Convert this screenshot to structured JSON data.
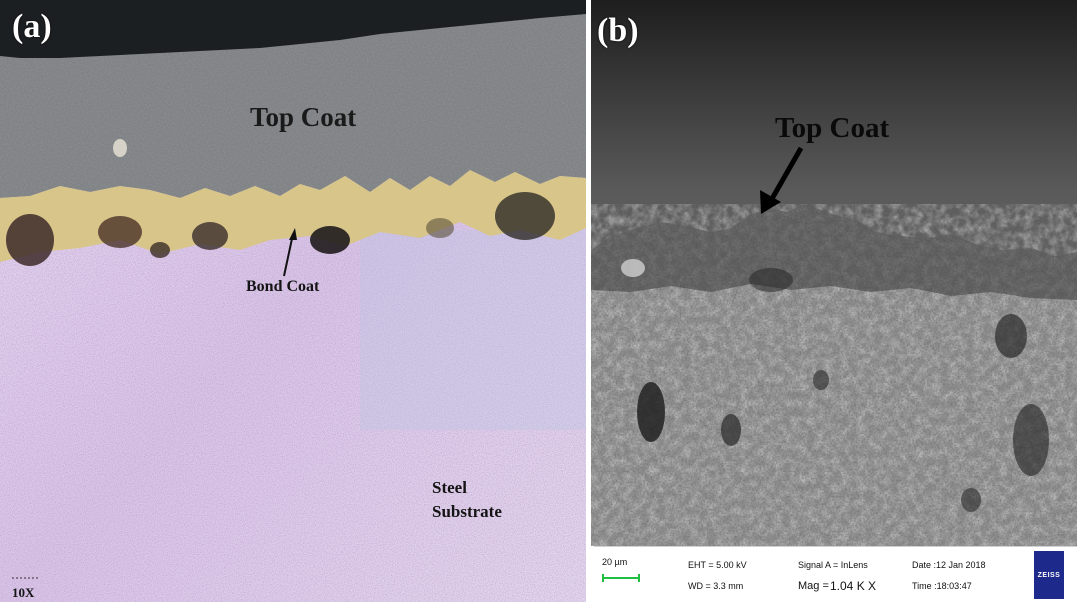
{
  "panel_a": {
    "label": "(a)",
    "top_coat": "Top Coat",
    "bond_coat": "Bond Coat",
    "steel_line1": "Steel",
    "steel_line2": "Substrate",
    "magnification": "10X"
  },
  "panel_b": {
    "label": "(b)",
    "top_coat": "Top Coat",
    "info_bar": {
      "scale": "20 µm",
      "eht": "EHT = 5.00 kV",
      "wd": "WD = 3.3 mm",
      "signal": "Signal A = InLens",
      "mag_label": "Mag =",
      "mag_value": "1.04 K X",
      "date": "Date :12 Jan 2018",
      "time": "Time :18:03:47",
      "logo": "ZEISS"
    }
  },
  "colors": {
    "scale_bar": "#1fc040",
    "logo_bg": "#1d2a8c"
  }
}
